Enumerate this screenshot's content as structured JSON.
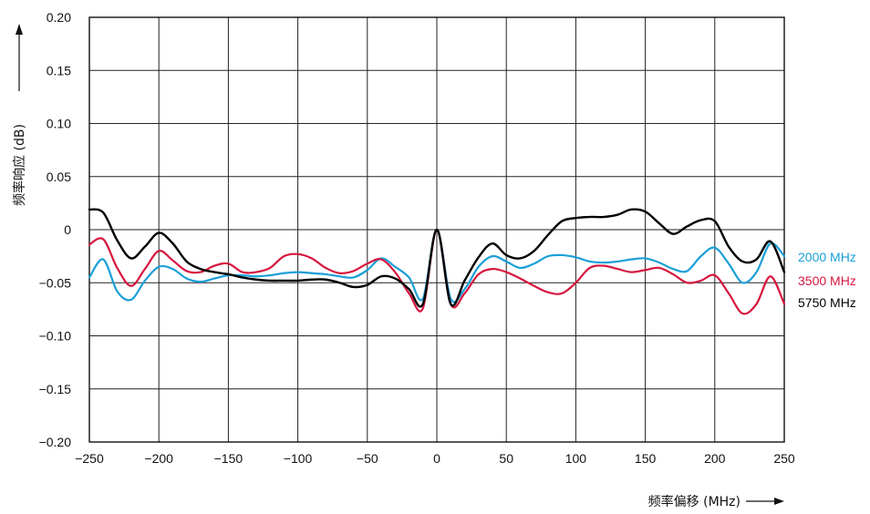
{
  "chart_data": {
    "type": "line",
    "xlabel": "频率偏移 (MHz)",
    "ylabel": "频率响应 (dB)",
    "xlim": [
      -250,
      250
    ],
    "ylim": [
      -0.2,
      0.2
    ],
    "x_ticks": [
      -250,
      -200,
      -150,
      -100,
      -50,
      0,
      50,
      100,
      150,
      200,
      250
    ],
    "y_ticks": [
      -0.2,
      -0.15,
      -0.1,
      -0.05,
      0,
      0.05,
      0.1,
      0.15,
      0.2
    ],
    "x_tick_labels": [
      "−250",
      "−200",
      "−150",
      "−100",
      "−50",
      "0",
      "50",
      "100",
      "150",
      "200",
      "250"
    ],
    "y_tick_labels": [
      "−0.20",
      "−0.15",
      "−0.10",
      "−0.05",
      "0",
      "0.05",
      "0.10",
      "0.15",
      "0.20"
    ],
    "grid": true,
    "legend": "right",
    "series": [
      {
        "name": "2000 MHz",
        "color": "#1a9fd8",
        "x": [
          -250,
          -240,
          -230,
          -220,
          -210,
          -200,
          -190,
          -180,
          -170,
          -160,
          -150,
          -140,
          -130,
          -120,
          -110,
          -100,
          -90,
          -80,
          -70,
          -60,
          -50,
          -40,
          -30,
          -20,
          -10,
          0,
          10,
          20,
          30,
          40,
          50,
          60,
          70,
          80,
          90,
          100,
          110,
          120,
          130,
          140,
          150,
          160,
          170,
          180,
          190,
          200,
          210,
          220,
          230,
          240,
          250
        ],
        "y": [
          -0.045,
          -0.028,
          -0.058,
          -0.066,
          -0.048,
          -0.035,
          -0.037,
          -0.046,
          -0.049,
          -0.046,
          -0.043,
          -0.043,
          -0.044,
          -0.043,
          -0.041,
          -0.04,
          -0.041,
          -0.042,
          -0.044,
          -0.045,
          -0.038,
          -0.027,
          -0.035,
          -0.045,
          -0.065,
          0.0,
          -0.065,
          -0.056,
          -0.035,
          -0.025,
          -0.03,
          -0.036,
          -0.032,
          -0.025,
          -0.024,
          -0.026,
          -0.03,
          -0.031,
          -0.03,
          -0.028,
          -0.027,
          -0.031,
          -0.037,
          -0.039,
          -0.025,
          -0.017,
          -0.032,
          -0.05,
          -0.04,
          -0.013,
          -0.025
        ]
      },
      {
        "name": "3500 MHz",
        "color": "#d6163f",
        "x": [
          -250,
          -240,
          -230,
          -220,
          -210,
          -200,
          -190,
          -180,
          -170,
          -160,
          -150,
          -140,
          -130,
          -120,
          -110,
          -100,
          -90,
          -80,
          -70,
          -60,
          -50,
          -40,
          -30,
          -20,
          -10,
          0,
          10,
          20,
          30,
          40,
          50,
          60,
          70,
          80,
          90,
          100,
          110,
          120,
          130,
          140,
          150,
          160,
          170,
          180,
          190,
          200,
          210,
          220,
          230,
          240,
          250
        ],
        "y": [
          -0.014,
          -0.009,
          -0.036,
          -0.053,
          -0.037,
          -0.02,
          -0.029,
          -0.039,
          -0.04,
          -0.034,
          -0.032,
          -0.04,
          -0.04,
          -0.036,
          -0.025,
          -0.023,
          -0.027,
          -0.036,
          -0.041,
          -0.039,
          -0.032,
          -0.028,
          -0.04,
          -0.06,
          -0.074,
          0.0,
          -0.07,
          -0.06,
          -0.042,
          -0.037,
          -0.04,
          -0.046,
          -0.053,
          -0.059,
          -0.06,
          -0.05,
          -0.036,
          -0.034,
          -0.037,
          -0.04,
          -0.038,
          -0.036,
          -0.042,
          -0.05,
          -0.048,
          -0.043,
          -0.06,
          -0.079,
          -0.07,
          -0.044,
          -0.07
        ]
      },
      {
        "name": "5750 MHz",
        "color": "#000000",
        "x": [
          -250,
          -240,
          -230,
          -220,
          -210,
          -200,
          -190,
          -180,
          -170,
          -160,
          -150,
          -140,
          -130,
          -120,
          -110,
          -100,
          -90,
          -80,
          -70,
          -60,
          -50,
          -40,
          -30,
          -20,
          -10,
          0,
          10,
          20,
          30,
          40,
          50,
          60,
          70,
          80,
          90,
          100,
          110,
          120,
          130,
          140,
          150,
          160,
          170,
          180,
          190,
          200,
          210,
          220,
          230,
          240,
          250
        ],
        "y": [
          0.019,
          0.016,
          -0.01,
          -0.027,
          -0.016,
          -0.003,
          -0.013,
          -0.03,
          -0.037,
          -0.04,
          -0.042,
          -0.045,
          -0.047,
          -0.048,
          -0.048,
          -0.048,
          -0.047,
          -0.047,
          -0.05,
          -0.054,
          -0.052,
          -0.044,
          -0.046,
          -0.056,
          -0.07,
          0.0,
          -0.07,
          -0.048,
          -0.026,
          -0.013,
          -0.024,
          -0.027,
          -0.02,
          -0.005,
          0.008,
          0.011,
          0.012,
          0.012,
          0.014,
          0.019,
          0.017,
          0.006,
          -0.004,
          0.003,
          0.009,
          0.008,
          -0.016,
          -0.03,
          -0.028,
          -0.011,
          -0.04
        ]
      }
    ]
  }
}
